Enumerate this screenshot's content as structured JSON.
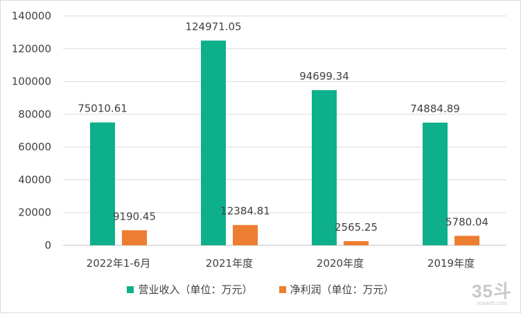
{
  "chart_data": {
    "type": "bar",
    "categories": [
      "2022年1-6月",
      "2021年度",
      "2020年度",
      "2019年度"
    ],
    "series": [
      {
        "name": "营业收入（单位：万元）",
        "values": [
          75010.61,
          124971.05,
          94699.34,
          74884.89
        ],
        "labels": [
          "75010.61",
          "124971.05",
          "94699.34",
          "74884.89"
        ],
        "color": "#0db08b"
      },
      {
        "name": "净利润（单位：万元）",
        "values": [
          9190.45,
          12384.81,
          2565.25,
          5780.04
        ],
        "labels": [
          "9190.45",
          "12384.81",
          "2565.25",
          "5780.04"
        ],
        "color": "#ed7d31"
      }
    ],
    "ylim": [
      0,
      140000
    ],
    "yticks": [
      0,
      20000,
      40000,
      60000,
      80000,
      100000,
      120000,
      140000
    ],
    "grid": true,
    "legend_position": "bottom"
  },
  "watermark": {
    "big": "35斗",
    "small": "vcearth.com"
  }
}
